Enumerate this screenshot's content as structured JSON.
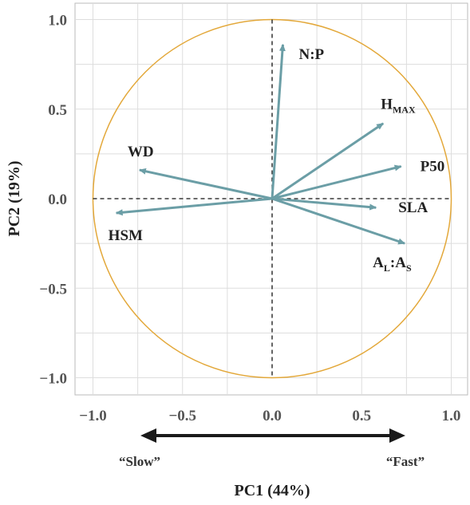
{
  "chart_data": {
    "type": "scatter",
    "subtype": "pca-biplot-correlation-circle",
    "xlabel": "PC1 (44%)",
    "ylabel": "PC2 (19%)",
    "xlim": [
      -1.1,
      1.1
    ],
    "ylim": [
      -1.1,
      1.1
    ],
    "x_ticks": [
      -1.0,
      -0.5,
      0.0,
      0.5,
      1.0
    ],
    "y_ticks": [
      1.0,
      0.5,
      0.0,
      -0.5,
      -1.0
    ],
    "x_tick_labels": [
      "−1.0",
      "−0.5",
      "0.0",
      "0.5",
      "1.0"
    ],
    "y_tick_labels": [
      "1.0",
      "0.5",
      "0.0",
      "−0.5",
      "−1.0"
    ],
    "grid": true,
    "circle_radius": 1.0,
    "vectors": [
      {
        "label": "N:P",
        "label_parts": [
          {
            "text": "N:P"
          }
        ],
        "x": 0.06,
        "y": 0.86
      },
      {
        "label": "HMAX",
        "label_parts": [
          {
            "text": "H"
          },
          {
            "text": "MAX",
            "sub": true
          }
        ],
        "x": 0.62,
        "y": 0.42
      },
      {
        "label": "P50",
        "label_parts": [
          {
            "text": "P50"
          }
        ],
        "x": 0.72,
        "y": 0.18
      },
      {
        "label": "SLA",
        "label_parts": [
          {
            "text": "SLA"
          }
        ],
        "x": 0.58,
        "y": -0.05
      },
      {
        "label": "AL:AS",
        "label_parts": [
          {
            "text": "A"
          },
          {
            "text": "L",
            "sub": true
          },
          {
            "text": ":A"
          },
          {
            "text": "S",
            "sub": true
          }
        ],
        "x": 0.74,
        "y": -0.25
      },
      {
        "label": "WD",
        "label_parts": [
          {
            "text": "WD"
          }
        ],
        "x": -0.74,
        "y": 0.16
      },
      {
        "label": "HSM",
        "label_parts": [
          {
            "text": "HSM"
          }
        ],
        "x": -0.87,
        "y": -0.08
      }
    ],
    "pace_axis": {
      "left_label": "“Slow”",
      "right_label": "“Fast”"
    },
    "colors": {
      "vector": "#6b9ea6",
      "circle": "#e3a83a",
      "grid": "#dddddd",
      "arrow": "#1a1a1a"
    }
  }
}
